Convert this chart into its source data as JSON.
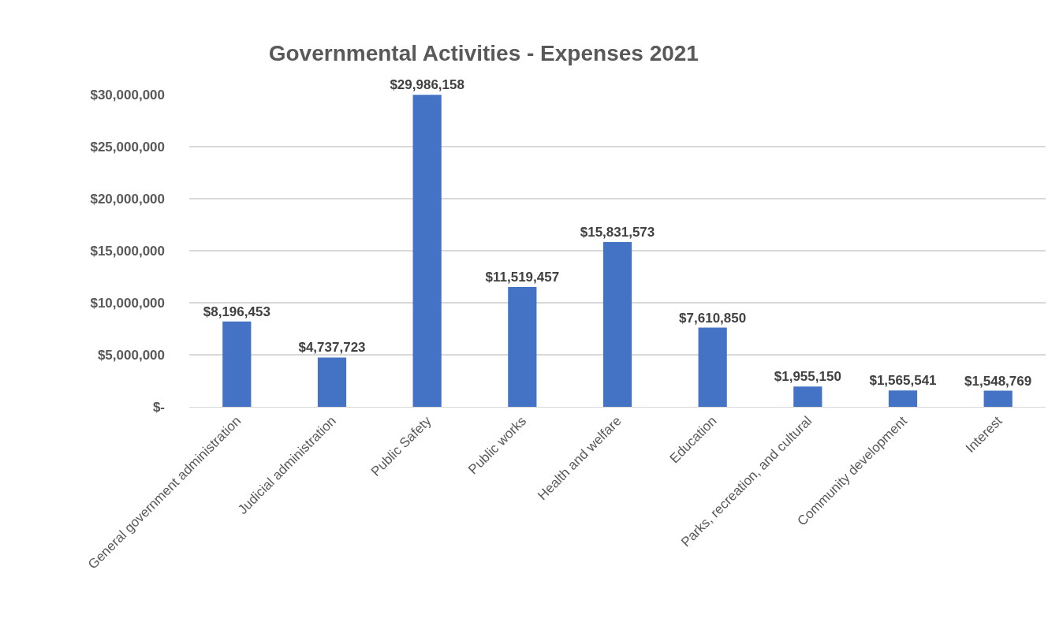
{
  "chart_data": {
    "type": "bar",
    "title": "Governmental Activities - Expenses 2021",
    "categories": [
      "General government administration",
      "Judicial administration",
      "Public Safety",
      "Public works",
      "Health and welfare",
      "Education",
      "Parks, recreation, and cultural",
      "Community development",
      "Interest"
    ],
    "values": [
      8196453,
      4737723,
      29986158,
      11519457,
      15831573,
      7610850,
      1955150,
      1565541,
      1548769
    ],
    "value_labels": [
      "$8,196,453",
      "$4,737,723",
      "$29,986,158",
      "$11,519,457",
      "$15,831,573",
      "$7,610,850",
      "$1,955,150",
      "$1,565,541",
      "$1,548,769"
    ],
    "color": "#4472c4",
    "ylim": [
      0,
      30000000
    ],
    "yticks": [
      {
        "value": 0,
        "label": "$-"
      },
      {
        "value": 5000000,
        "label": "$5,000,000"
      },
      {
        "value": 10000000,
        "label": "$10,000,000"
      },
      {
        "value": 15000000,
        "label": "$15,000,000"
      },
      {
        "value": 20000000,
        "label": "$20,000,000"
      },
      {
        "value": 25000000,
        "label": "$25,000,000"
      },
      {
        "value": 30000000,
        "label": "$30,000,000"
      }
    ],
    "grid": "y",
    "legend": false
  }
}
